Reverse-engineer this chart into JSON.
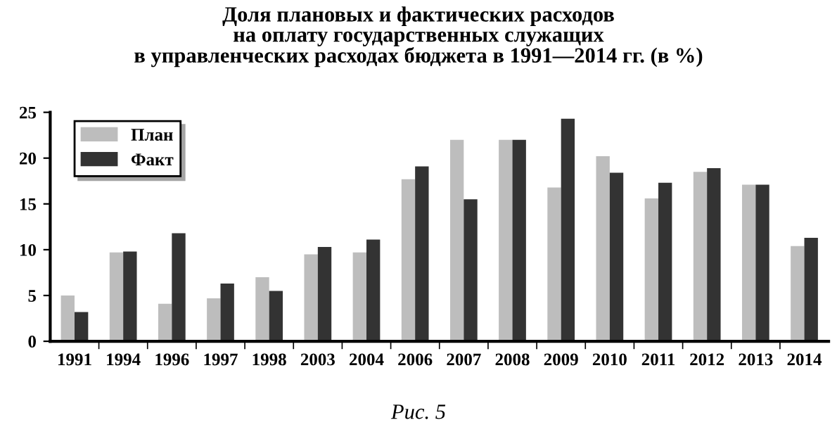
{
  "chart_data": {
    "type": "bar",
    "title": "Доля плановых и фактических расходов\nна оплату государственных служащих\nв управленческих расходах бюджета в 1991—2014 гг. (в %)",
    "categories": [
      "1991",
      "1994",
      "1996",
      "1997",
      "1998",
      "2003",
      "2004",
      "2006",
      "2007",
      "2008",
      "2009",
      "2010",
      "2011",
      "2012",
      "2013",
      "2014"
    ],
    "series": [
      {
        "name": "План",
        "color": "#bdbdbd",
        "values": [
          5.0,
          9.7,
          4.1,
          4.7,
          7.0,
          9.5,
          9.7,
          17.7,
          22.0,
          22.0,
          16.8,
          20.2,
          15.6,
          18.5,
          17.1,
          10.4
        ]
      },
      {
        "name": "Факт",
        "color": "#333333",
        "values": [
          3.2,
          9.8,
          11.8,
          6.3,
          5.5,
          10.3,
          11.1,
          19.1,
          15.5,
          22.0,
          24.3,
          18.4,
          17.3,
          18.9,
          17.1,
          11.3
        ]
      }
    ],
    "ylim": [
      0,
      25
    ],
    "yticks": [
      0,
      5,
      10,
      15,
      20,
      25
    ],
    "grid": false,
    "legend": "top left",
    "annotations": [
      "Рис. 5"
    ]
  }
}
